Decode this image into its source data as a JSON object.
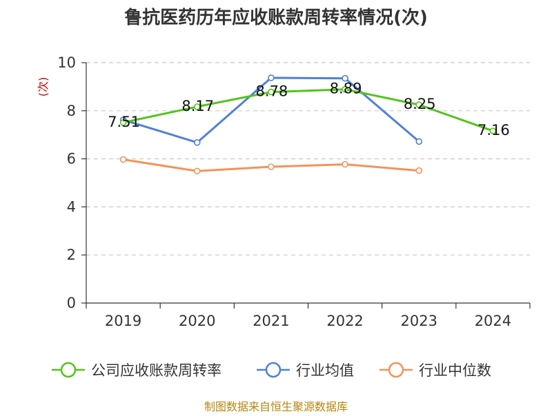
{
  "chart_data": {
    "type": "line",
    "title": "鲁抗医药历年应收账款周转率情况(次)",
    "ylabel": "(次)",
    "xlabel": "",
    "ylim": [
      0,
      10
    ],
    "yticks": [
      "0",
      "2",
      "4",
      "6",
      "8",
      "10"
    ],
    "categories": [
      "2019",
      "2020",
      "2021",
      "2022",
      "2023",
      "2024"
    ],
    "grid": true,
    "legend_position": "bottom",
    "series": [
      {
        "name": "公司应收账款周转率",
        "color": "#52c41a",
        "values": [
          7.51,
          8.17,
          8.78,
          8.89,
          8.25,
          7.16
        ],
        "labels": [
          "7.51",
          "8.17",
          "8.78",
          "8.89",
          "8.25",
          "7.16"
        ]
      },
      {
        "name": "行业均值",
        "color": "#4f7fdb",
        "values": [
          7.62,
          6.68,
          9.37,
          9.35,
          6.72,
          null
        ]
      },
      {
        "name": "行业中位数",
        "color": "#f4925a",
        "values": [
          5.97,
          5.49,
          5.67,
          5.77,
          5.51,
          null
        ]
      }
    ],
    "source": "制图数据来自恒生聚源数据库"
  }
}
